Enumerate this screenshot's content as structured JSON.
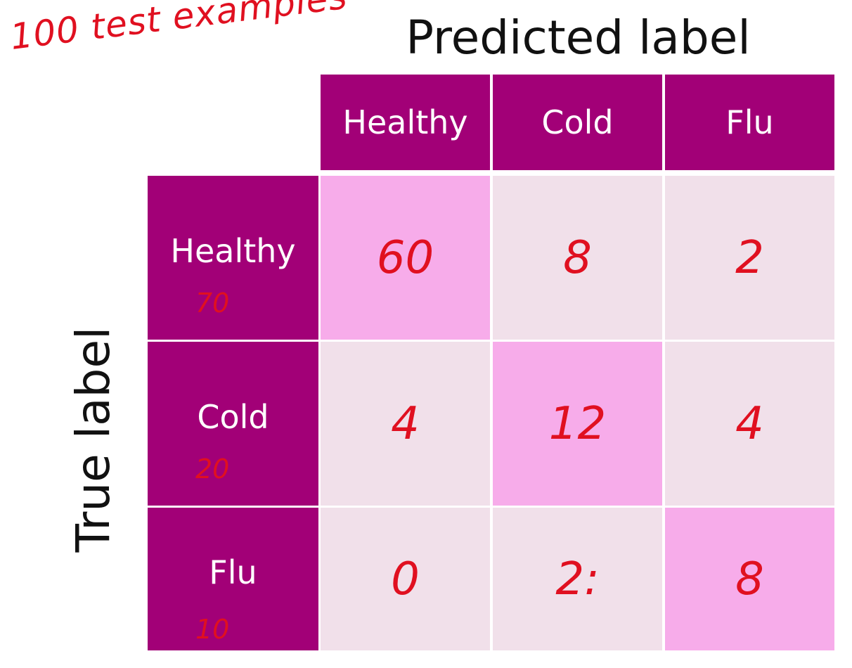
{
  "annotation": "100 test examples",
  "predicted_axis_title": "Predicted label",
  "true_axis_title": "True label",
  "predicted_labels": [
    "Healthy",
    "Cold",
    "Flu"
  ],
  "true_labels": [
    "Healthy",
    "Cold",
    "Flu"
  ],
  "row_totals": [
    "70",
    "20",
    "10"
  ],
  "matrix": [
    [
      "60",
      "8",
      "2"
    ],
    [
      "4",
      "12",
      "4"
    ],
    [
      "0",
      "2:",
      "8"
    ]
  ],
  "colors": {
    "header": "#a20077",
    "diagonal": "#f7acea",
    "off_diagonal": "#f1e0ea",
    "ink": "#e01020"
  }
}
